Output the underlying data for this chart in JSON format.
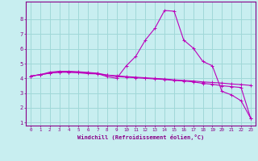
{
  "xlabel": "Windchill (Refroidissement éolien,°C)",
  "background_color": "#c8eef0",
  "grid_color": "#a0d8d8",
  "line_color": "#bb00bb",
  "x": [
    0,
    1,
    2,
    3,
    4,
    5,
    6,
    7,
    8,
    9,
    10,
    11,
    12,
    13,
    14,
    15,
    16,
    17,
    18,
    19,
    20,
    21,
    22,
    23
  ],
  "line1": [
    4.15,
    4.25,
    4.35,
    4.42,
    4.42,
    4.38,
    4.32,
    4.3,
    4.22,
    4.18,
    4.12,
    4.08,
    4.04,
    4.0,
    3.96,
    3.9,
    3.86,
    3.82,
    3.76,
    3.72,
    3.68,
    3.62,
    3.58,
    3.52
  ],
  "line2": [
    4.15,
    4.25,
    4.35,
    4.42,
    4.42,
    4.4,
    4.38,
    4.32,
    4.12,
    4.0,
    4.85,
    5.5,
    6.6,
    7.4,
    8.6,
    8.55,
    6.6,
    6.05,
    5.15,
    4.85,
    3.12,
    2.88,
    2.48,
    1.3
  ],
  "line3": [
    4.15,
    4.25,
    4.42,
    4.48,
    4.48,
    4.45,
    4.4,
    4.35,
    4.22,
    4.12,
    4.08,
    4.04,
    4.0,
    3.96,
    3.92,
    3.86,
    3.82,
    3.76,
    3.66,
    3.6,
    3.5,
    3.44,
    3.38,
    1.3
  ],
  "ylim": [
    0.8,
    9.2
  ],
  "xlim": [
    -0.5,
    23.5
  ],
  "yticks": [
    1,
    2,
    3,
    4,
    5,
    6,
    7,
    8
  ],
  "xticks": [
    0,
    1,
    2,
    3,
    4,
    5,
    6,
    7,
    8,
    9,
    10,
    11,
    12,
    13,
    14,
    15,
    16,
    17,
    18,
    19,
    20,
    21,
    22,
    23
  ]
}
